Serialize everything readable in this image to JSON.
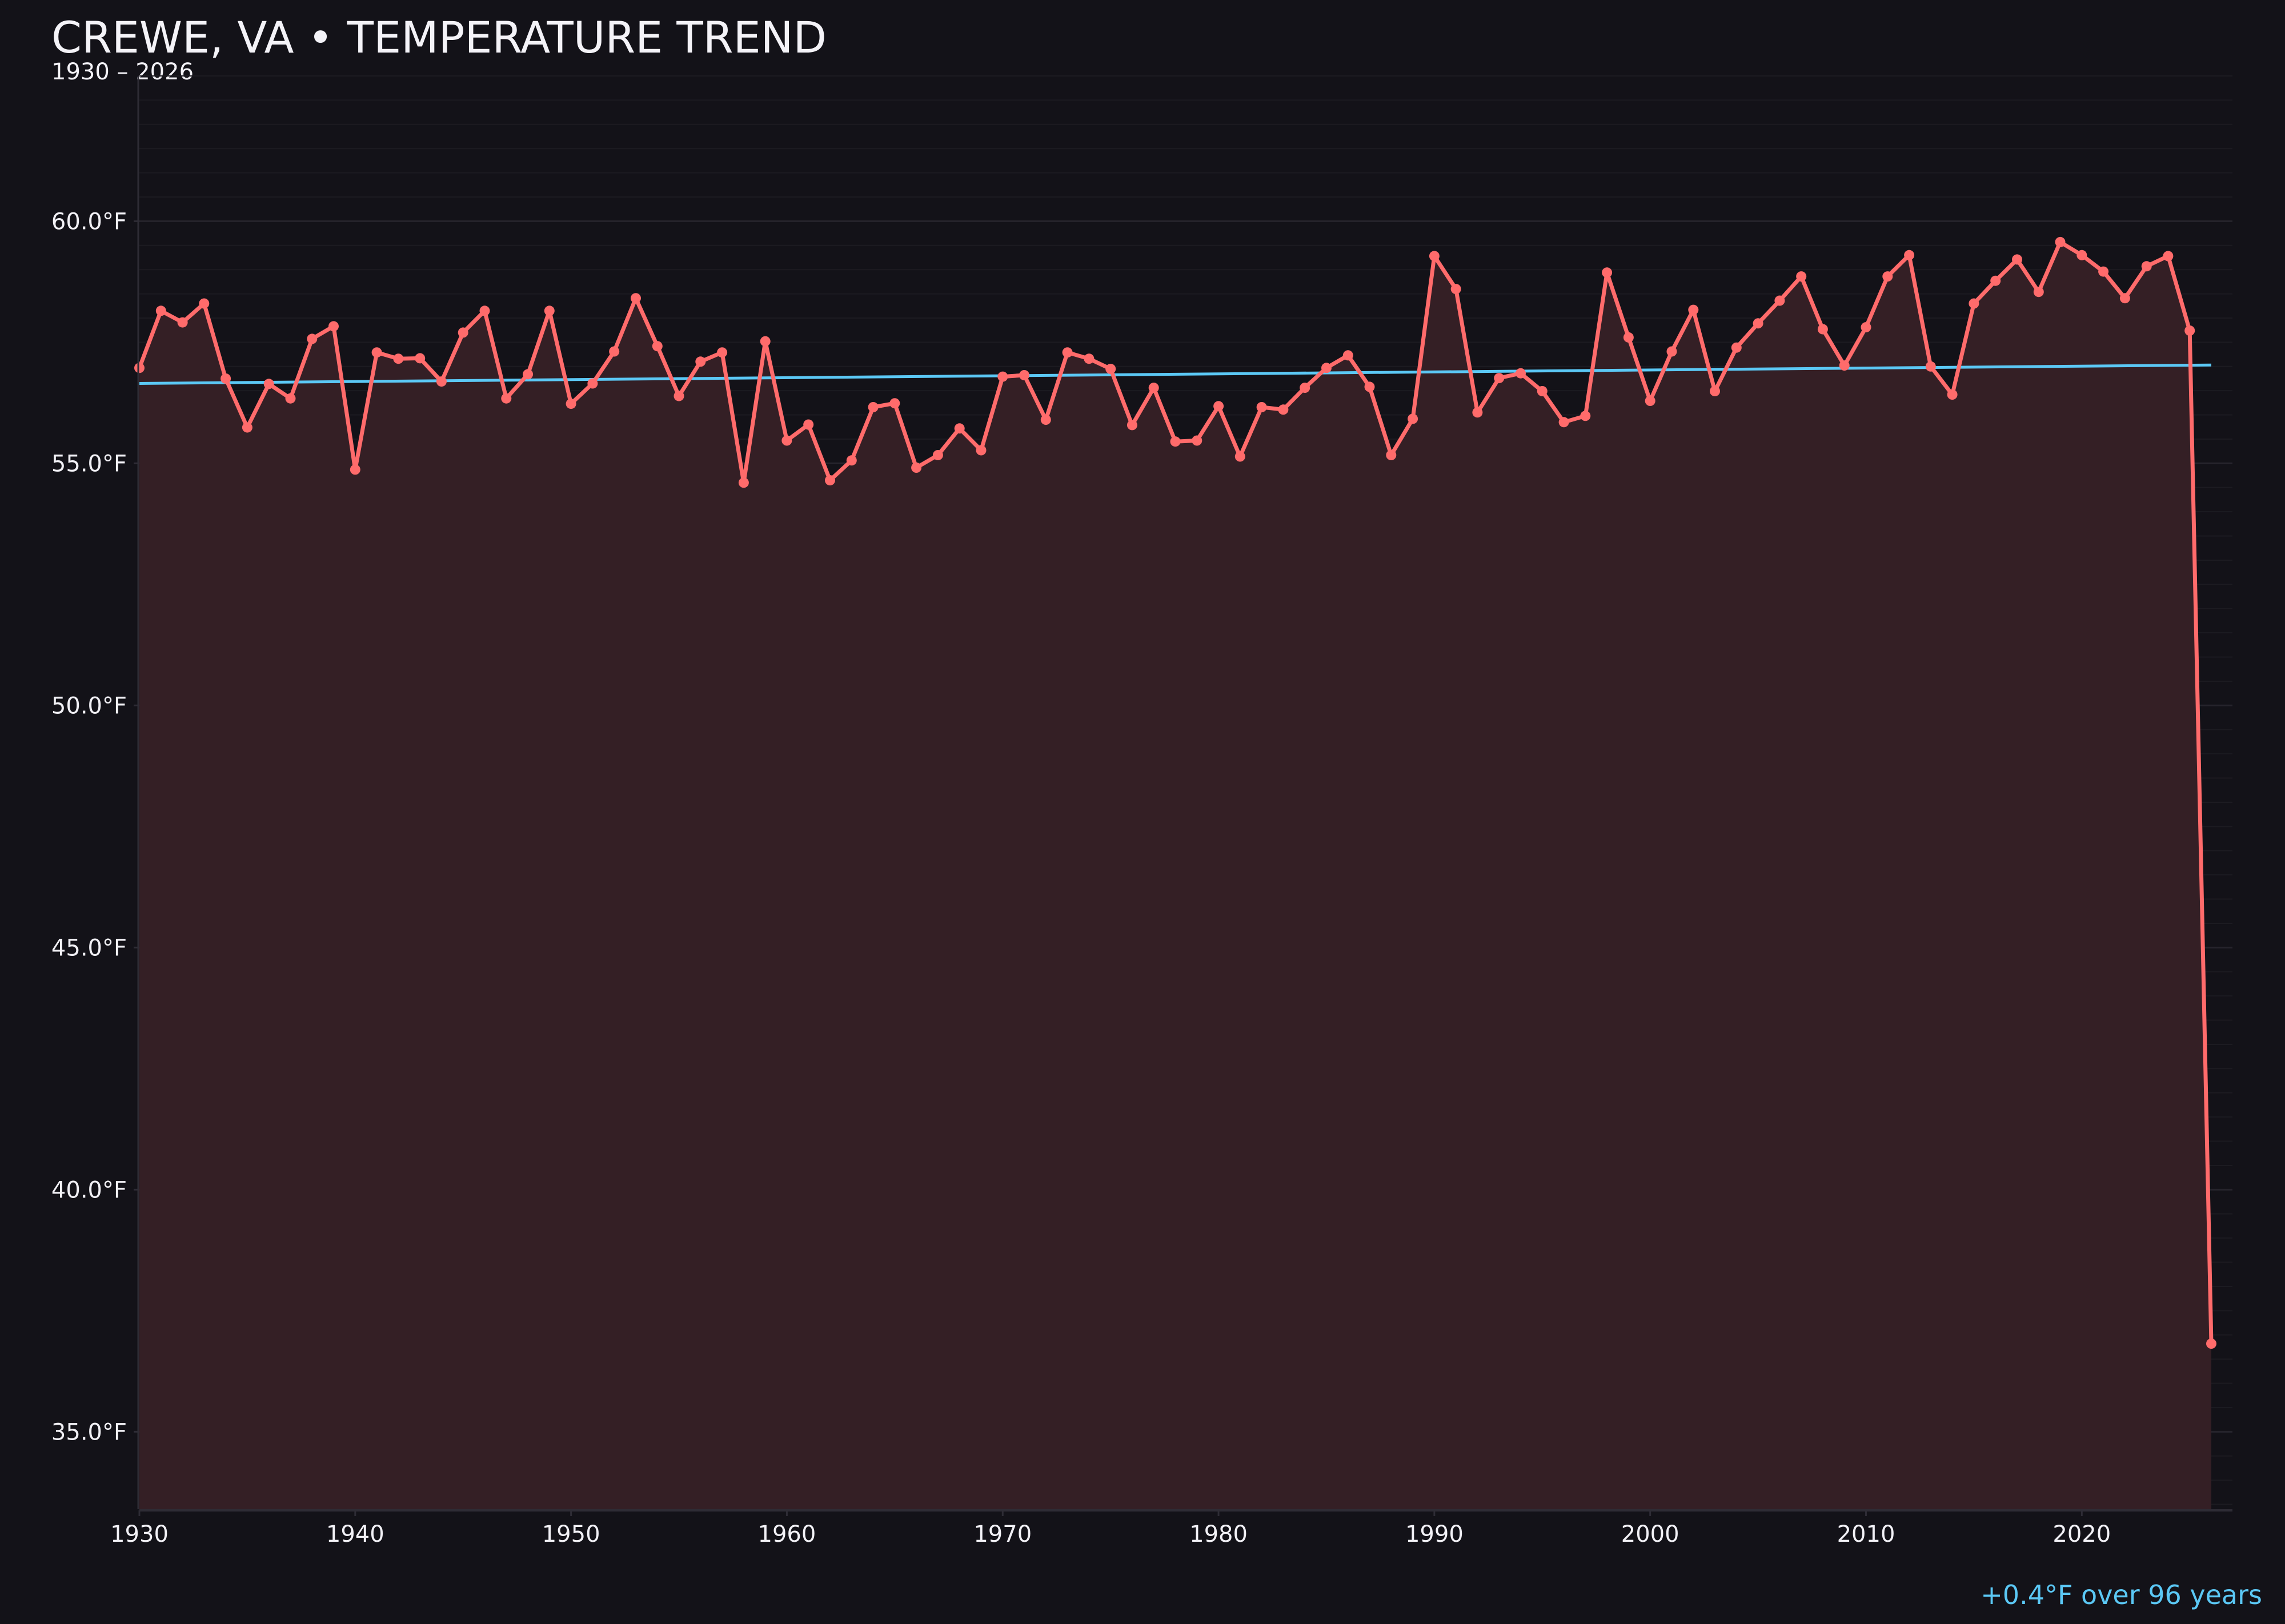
{
  "header": {
    "title": "CREWE, VA • TEMPERATURE TREND",
    "subtitle": "1930 – 2026"
  },
  "annotation": {
    "trend_summary": "+0.4°F over 96 years"
  },
  "colors": {
    "background": "#131218",
    "series_line": "#ff6b6b",
    "series_fill": "#341f25",
    "trend_line": "#5bc8f5",
    "grid_major": "#26242c",
    "grid_minor": "#1c1b21",
    "axis": "#2e2c35",
    "text": "#f2f1f6"
  },
  "chart_data": {
    "type": "line",
    "title": "CREWE, VA • TEMPERATURE TREND",
    "subtitle": "1930 – 2026",
    "xlabel": "",
    "ylabel": "",
    "xlim": [
      1930,
      2026
    ],
    "ylim": [
      33.4,
      63.0
    ],
    "grid": true,
    "legend": "none",
    "x_ticks": [
      1930,
      1940,
      1950,
      1960,
      1970,
      1980,
      1990,
      2000,
      2010,
      2020
    ],
    "x_tick_labels": [
      "1930",
      "1940",
      "1950",
      "1960",
      "1970",
      "1980",
      "1990",
      "2000",
      "2010",
      "2020"
    ],
    "y_ticks": [
      35,
      40,
      45,
      50,
      55,
      60
    ],
    "y_tick_labels": [
      "35.0°F",
      "40.0°F",
      "45.0°F",
      "50.0°F",
      "55.0°F",
      "60.0°F"
    ],
    "x": [
      1930,
      1931,
      1932,
      1933,
      1934,
      1935,
      1936,
      1937,
      1938,
      1939,
      1940,
      1941,
      1942,
      1943,
      1944,
      1945,
      1946,
      1947,
      1948,
      1949,
      1950,
      1951,
      1952,
      1953,
      1954,
      1955,
      1956,
      1957,
      1958,
      1959,
      1960,
      1961,
      1962,
      1963,
      1964,
      1965,
      1966,
      1967,
      1968,
      1969,
      1970,
      1971,
      1972,
      1973,
      1974,
      1975,
      1976,
      1977,
      1978,
      1979,
      1980,
      1981,
      1982,
      1983,
      1984,
      1985,
      1986,
      1987,
      1988,
      1989,
      1990,
      1991,
      1992,
      1993,
      1994,
      1995,
      1996,
      1997,
      1998,
      1999,
      2000,
      2001,
      2002,
      2003,
      2004,
      2005,
      2006,
      2007,
      2008,
      2009,
      2010,
      2011,
      2012,
      2013,
      2014,
      2015,
      2016,
      2017,
      2018,
      2019,
      2020,
      2021,
      2022,
      2023,
      2024,
      2025,
      2026
    ],
    "series": [
      {
        "name": "Annual mean temperature (°F)",
        "style": "line+markers+area",
        "values": [
          56.97,
          58.15,
          57.91,
          58.3,
          56.75,
          55.74,
          56.64,
          56.34,
          57.57,
          57.83,
          54.87,
          57.29,
          57.16,
          57.17,
          56.69,
          57.7,
          58.15,
          56.34,
          56.84,
          58.15,
          56.23,
          56.65,
          57.31,
          58.41,
          57.42,
          56.39,
          57.1,
          57.29,
          54.6,
          57.52,
          55.47,
          55.8,
          54.65,
          55.06,
          56.16,
          56.24,
          54.91,
          55.17,
          55.72,
          55.27,
          56.79,
          56.82,
          55.9,
          57.29,
          57.16,
          56.95,
          55.79,
          56.56,
          55.45,
          55.47,
          56.18,
          55.14,
          56.16,
          56.11,
          56.56,
          56.97,
          57.23,
          56.58,
          55.17,
          55.92,
          59.28,
          58.6,
          56.05,
          56.76,
          56.86,
          56.49,
          55.85,
          55.98,
          58.94,
          57.6,
          56.29,
          57.31,
          58.17,
          56.49,
          57.39,
          57.89,
          58.36,
          58.86,
          57.77,
          57.02,
          57.81,
          58.86,
          59.3,
          57.0,
          56.42,
          58.3,
          58.77,
          59.21,
          58.54,
          59.57,
          59.3,
          58.96,
          58.41,
          59.07,
          59.28,
          57.74,
          36.82
        ]
      },
      {
        "name": "Linear trend",
        "style": "line",
        "x": [
          1930,
          2026
        ],
        "values": [
          56.65,
          57.03
        ]
      }
    ],
    "annotations": [
      "+0.4°F over 96 years"
    ]
  }
}
